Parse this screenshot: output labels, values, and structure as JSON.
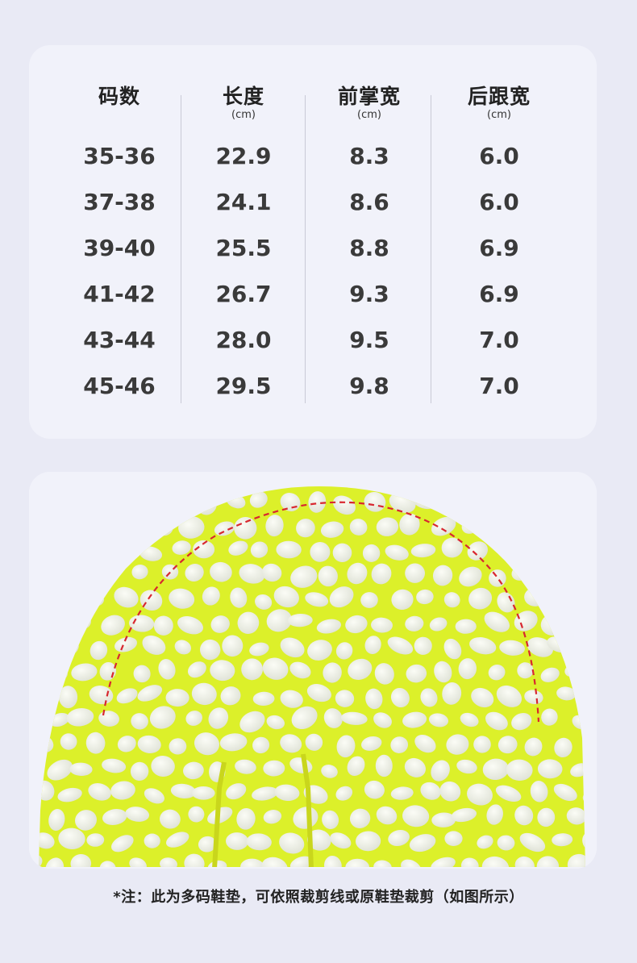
{
  "size_table": {
    "columns": [
      {
        "header": "码数",
        "unit": "",
        "values": [
          "35-36",
          "37-38",
          "39-40",
          "41-42",
          "43-44",
          "45-46"
        ]
      },
      {
        "header": "长度",
        "unit": "(cm)",
        "values": [
          "22.9",
          "24.1",
          "25.5",
          "26.7",
          "28.0",
          "29.5"
        ]
      },
      {
        "header": "前掌宽",
        "unit": "(cm)",
        "values": [
          "8.3",
          "8.6",
          "8.8",
          "9.3",
          "9.5",
          "9.8"
        ]
      },
      {
        "header": "后跟宽",
        "unit": "(cm)",
        "values": [
          "6.0",
          "6.0",
          "6.9",
          "6.9",
          "7.0",
          "7.0"
        ]
      }
    ]
  },
  "photo": {
    "subject": "insole-heel-closeup",
    "colors": {
      "foam_base": "#dcf02a",
      "pebbles": "#eef0e8",
      "cut_line": "#d8272f",
      "card_bg": "#f1f2fa"
    }
  },
  "note": {
    "text": "*注：此为多码鞋垫，可依照裁剪线或原鞋垫裁剪（如图所示）"
  }
}
